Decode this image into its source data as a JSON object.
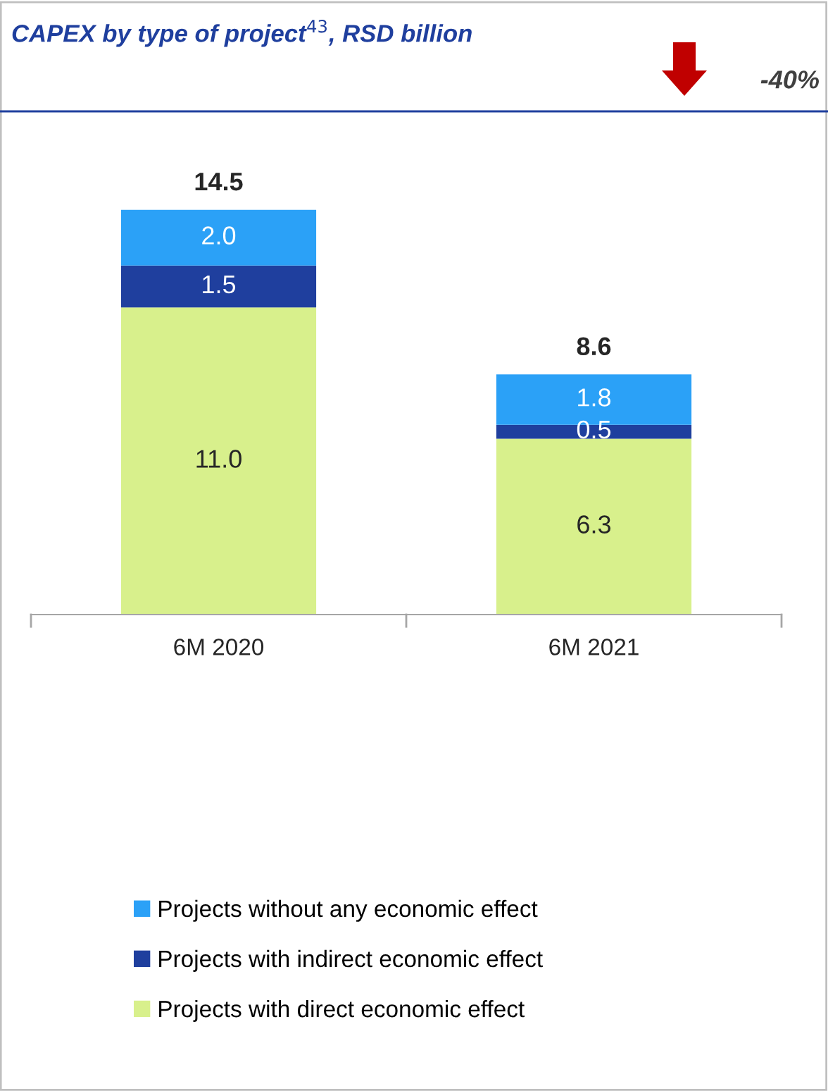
{
  "chart_data": {
    "type": "bar",
    "title": "CAPEX by type of project$^{43}$, RSD billion",
    "categories": [
      "6M 2020",
      "6M 2021"
    ],
    "stacked": true,
    "series": [
      {
        "name": "Projects with direct economic effect",
        "color": "#d8f08c",
        "values": [
          11.0,
          6.3
        ],
        "value_labels": [
          "11.0",
          "6.3"
        ]
      },
      {
        "name": "Projects with indirect economic effect",
        "color": "#1f3f9e",
        "values": [
          1.5,
          0.5
        ],
        "value_labels": [
          "1.5",
          "0.5"
        ]
      },
      {
        "name": "Projects without any economic effect",
        "color": "#2ba1f7",
        "values": [
          2.0,
          1.8
        ],
        "value_labels": [
          "2.0",
          "1.8"
        ]
      }
    ],
    "totals": [
      "14.5",
      "8.6"
    ],
    "annotations": [
      "-40%"
    ],
    "legend": "bottom",
    "grid": false
  }
}
